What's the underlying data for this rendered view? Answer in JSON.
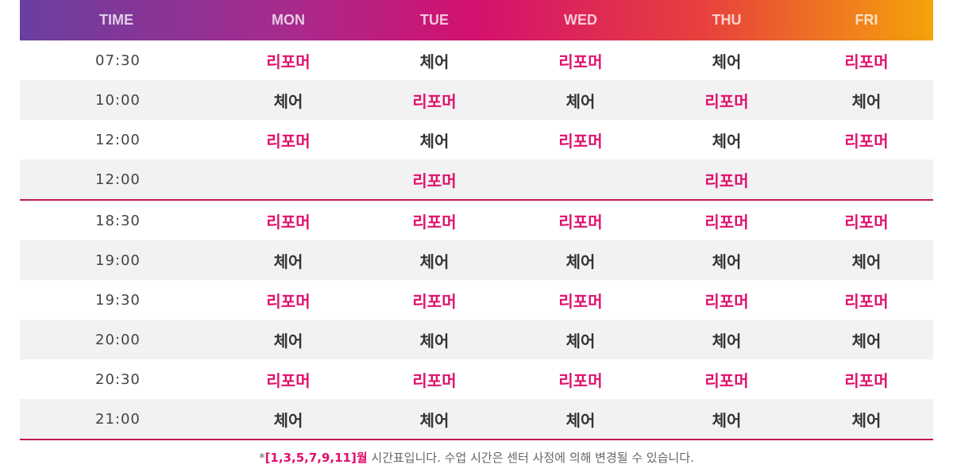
{
  "header": [
    "TIME",
    "MON",
    "TUE",
    "WED",
    "THU",
    "FRI"
  ],
  "rows": [
    {
      "time": "07:30",
      "cells": [
        "리포머",
        "체어",
        "리포머",
        "체어",
        "리포머"
      ]
    },
    {
      "time": "10:00",
      "cells": [
        "체어",
        "리포머",
        "체어",
        "리포머",
        "체어"
      ]
    },
    {
      "time": "12:00",
      "cells": [
        "리포머",
        "체어",
        "리포머",
        "체어",
        "리포머"
      ]
    },
    {
      "time": "12:00",
      "cells": [
        "",
        "리포머",
        "",
        "리포머",
        ""
      ]
    },
    {
      "time": "18:30",
      "cells": [
        "리포머",
        "리포머",
        "리포머",
        "리포머",
        "리포머"
      ]
    },
    {
      "time": "19:00",
      "cells": [
        "체어",
        "체어",
        "체어",
        "체어",
        "체어"
      ]
    },
    {
      "time": "19:30",
      "cells": [
        "리포머",
        "리포머",
        "리포머",
        "리포머",
        "리포머"
      ]
    },
    {
      "time": "20:00",
      "cells": [
        "체어",
        "체어",
        "체어",
        "체어",
        "체어"
      ]
    },
    {
      "time": "20:30",
      "cells": [
        "리포머",
        "리포머",
        "리포머",
        "리포머",
        "리포머"
      ]
    },
    {
      "time": "21:00",
      "cells": [
        "체어",
        "체어",
        "체어",
        "체어",
        "체어"
      ]
    }
  ],
  "note": {
    "prefix": "*",
    "highlight": "[1,3,5,7,9,11]월",
    "text": " 시간표입니다. 수업 시간은 센터 사정에 의해 변경될 수 있습니다."
  },
  "colors": {
    "reformer": "#e0106e",
    "chair": "#333333",
    "divider": "#c2185b"
  }
}
